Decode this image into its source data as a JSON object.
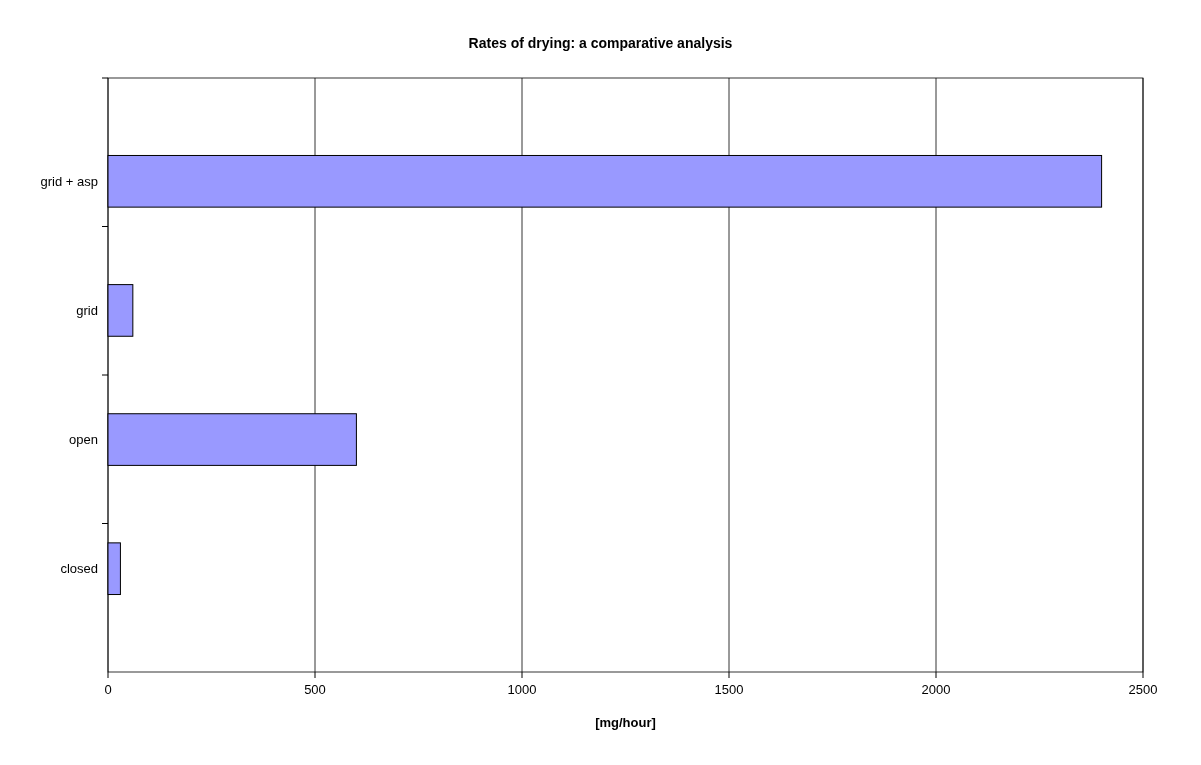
{
  "chart_data": {
    "type": "bar",
    "orientation": "horizontal",
    "title": "Rates of drying: a comparative analysis",
    "xlabel": "[mg/hour]",
    "categories": [
      "grid + asp",
      "grid",
      "open",
      "closed"
    ],
    "values": [
      2400,
      60,
      600,
      30
    ],
    "color": "#9999ff",
    "xlim": [
      0,
      2500
    ],
    "xticks": [
      0,
      500,
      1000,
      1500,
      2000,
      2500
    ],
    "grid": "x"
  }
}
